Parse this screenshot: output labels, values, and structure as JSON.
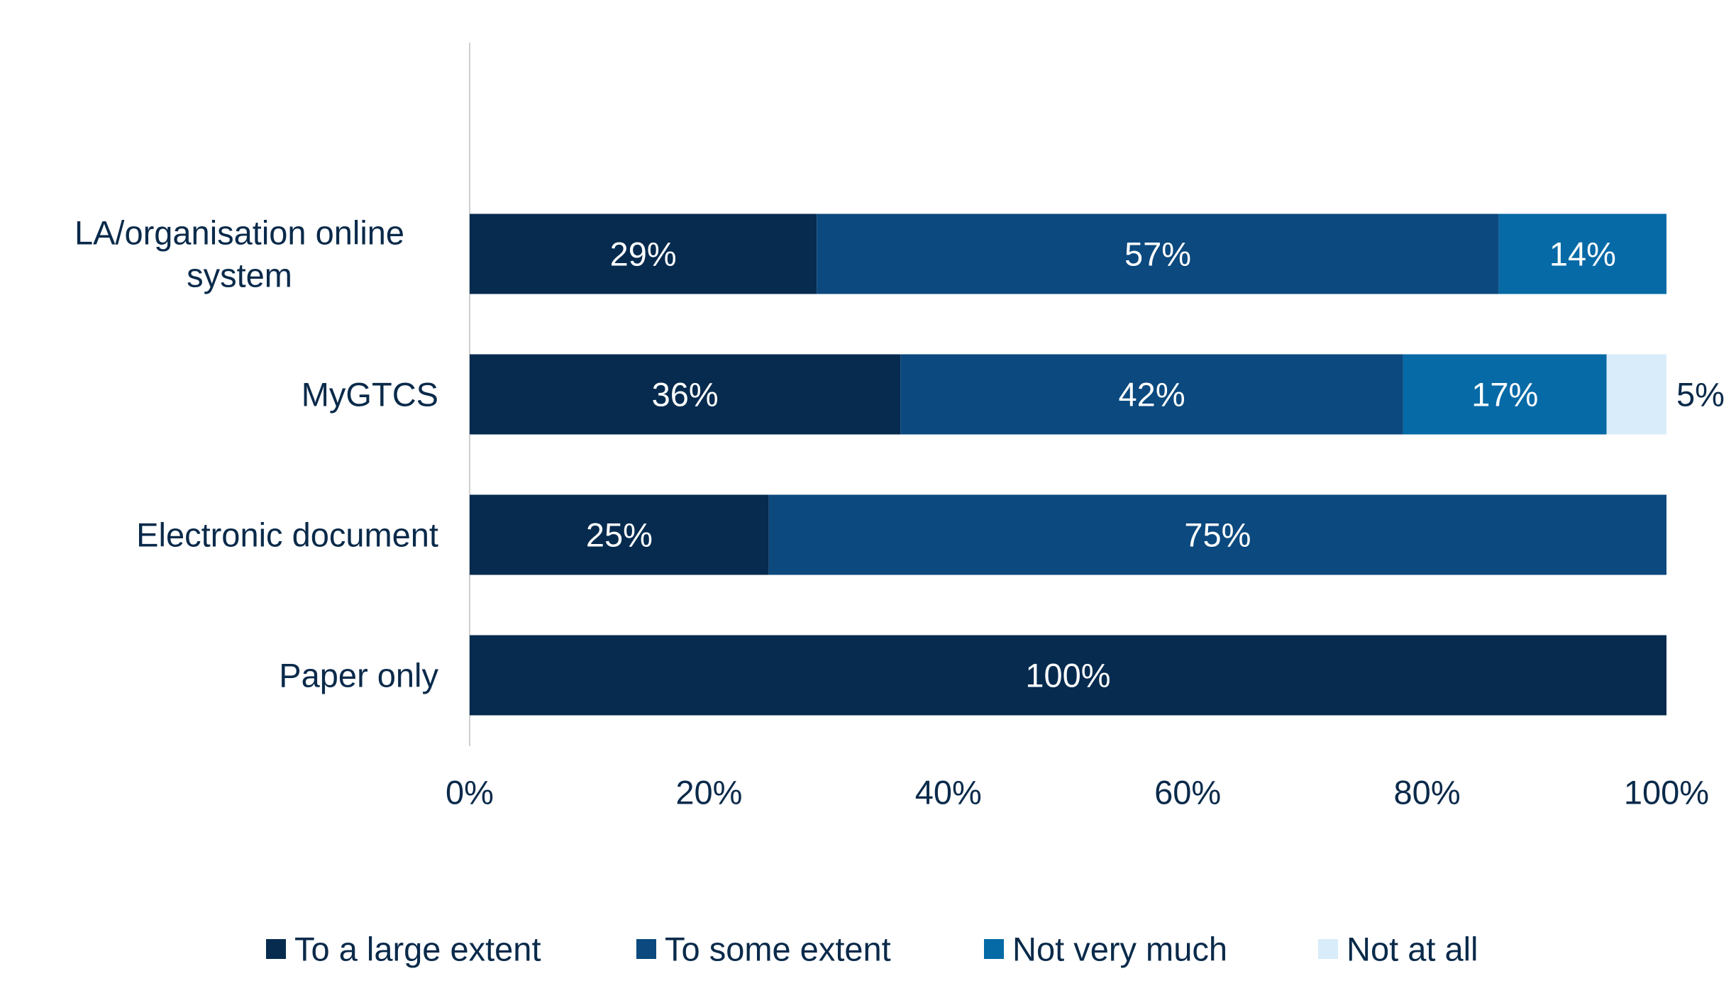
{
  "chart_data": {
    "type": "bar",
    "orientation": "horizontal",
    "stacked": true,
    "categories": [
      "LA/organisation online system",
      "MyGTCS",
      "Electronic document",
      "Paper only"
    ],
    "category_lines": [
      [
        "LA/organisation online",
        "system"
      ],
      [
        "MyGTCS"
      ],
      [
        "Electronic document"
      ],
      [
        "Paper only"
      ]
    ],
    "series": [
      {
        "name": "To a large extent",
        "values": [
          29,
          36,
          25,
          100
        ],
        "color": "#062b4f",
        "label_color": "#ffffff"
      },
      {
        "name": "To some extent",
        "values": [
          57,
          42,
          75,
          0
        ],
        "color": "#0b497e",
        "label_color": "#ffffff"
      },
      {
        "name": "Not very much",
        "values": [
          14,
          17,
          0,
          0
        ],
        "color": "#066aa6",
        "label_color": "#ffffff"
      },
      {
        "name": "Not at all",
        "values": [
          0,
          5,
          0,
          0
        ],
        "color": "#d9ecfa",
        "label_color": "#0a2a4a"
      }
    ],
    "xlim": [
      0,
      100
    ],
    "xticks": [
      0,
      20,
      40,
      60,
      80,
      100
    ],
    "tick_suffix": "%",
    "value_suffix": "%",
    "grid": false,
    "legend": "bottom",
    "axis_line_color": "#d0d0d0"
  }
}
